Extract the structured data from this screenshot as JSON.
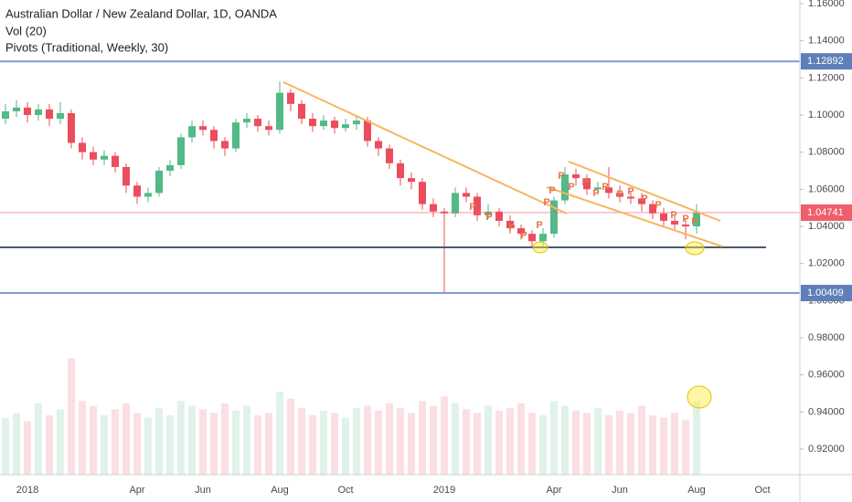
{
  "chart_data": {
    "type": "candlestick",
    "title": "Australian Dollar / New Zealand Dollar, 1D, OANDA",
    "indicators": [
      "Vol (20)",
      "Pivots (Traditional, Weekly, 30)"
    ],
    "categories": [
      null,
      null,
      "2018",
      null,
      null,
      null,
      null,
      null,
      null,
      null,
      null,
      null,
      "Apr",
      null,
      null,
      null,
      null,
      null,
      "Jun",
      null,
      null,
      null,
      null,
      null,
      null,
      "Aug",
      null,
      null,
      null,
      null,
      null,
      "Oct",
      null,
      null,
      null,
      null,
      null,
      null,
      null,
      null,
      "2019",
      null,
      null,
      null,
      null,
      null,
      null,
      null,
      null,
      null,
      "Apr",
      null,
      null,
      null,
      null,
      null,
      "Jun",
      null,
      null,
      null,
      null,
      null,
      null,
      "Aug",
      null,
      null,
      null,
      null,
      null,
      "Oct"
    ],
    "open": [
      1.098,
      1.102,
      1.104,
      1.1,
      1.103,
      1.098,
      1.101,
      1.085,
      1.08,
      1.076,
      1.078,
      1.072,
      1.062,
      1.056,
      1.058,
      1.07,
      1.073,
      1.088,
      1.094,
      1.092,
      1.086,
      1.082,
      1.096,
      1.098,
      1.094,
      1.092,
      1.112,
      1.106,
      1.098,
      1.094,
      1.097,
      1.093,
      1.095,
      1.097,
      1.086,
      1.082,
      1.074,
      1.066,
      1.064,
      1.052,
      1.048,
      1.047,
      1.058,
      1.056,
      1.046,
      1.048,
      1.043,
      1.039,
      1.036,
      1.032,
      1.036,
      1.054,
      1.068,
      1.066,
      1.06,
      1.061,
      1.058,
      1.056,
      1.055,
      1.052,
      1.047,
      1.043,
      1.041,
      1.04,
      null,
      null,
      null,
      null,
      null,
      null
    ],
    "high": [
      1.106,
      1.108,
      1.107,
      1.106,
      1.106,
      1.107,
      1.103,
      1.088,
      1.083,
      1.081,
      1.08,
      1.074,
      1.064,
      1.061,
      1.072,
      1.076,
      1.09,
      1.097,
      1.097,
      1.094,
      1.088,
      1.098,
      1.101,
      1.1,
      1.097,
      1.118,
      1.114,
      1.108,
      1.101,
      1.1,
      1.099,
      1.098,
      1.1,
      1.099,
      1.088,
      1.084,
      1.076,
      1.069,
      1.066,
      1.055,
      1.05,
      1.061,
      1.061,
      1.058,
      1.052,
      1.05,
      1.046,
      1.041,
      1.038,
      1.039,
      1.056,
      1.072,
      1.071,
      1.068,
      1.064,
      1.072,
      1.062,
      1.059,
      1.058,
      1.054,
      1.05,
      1.046,
      1.044,
      1.052,
      null,
      null,
      null,
      null,
      null,
      null
    ],
    "low": [
      1.095,
      1.099,
      1.096,
      1.097,
      1.094,
      1.095,
      1.082,
      1.076,
      1.073,
      1.073,
      1.069,
      1.058,
      1.052,
      1.053,
      1.056,
      1.067,
      1.071,
      1.085,
      1.089,
      1.082,
      1.078,
      1.08,
      1.093,
      1.091,
      1.089,
      1.09,
      1.102,
      1.095,
      1.091,
      1.092,
      1.09,
      1.091,
      1.092,
      1.083,
      1.078,
      1.071,
      1.062,
      1.06,
      1.049,
      1.045,
      1.0045,
      1.045,
      1.053,
      1.043,
      1.044,
      1.04,
      1.036,
      1.033,
      1.029,
      1.0285,
      1.034,
      1.052,
      1.062,
      1.057,
      1.057,
      1.055,
      1.053,
      1.052,
      1.048,
      1.044,
      1.04,
      1.038,
      1.033,
      1.036,
      null,
      null,
      null,
      null,
      null,
      null
    ],
    "close": [
      1.102,
      1.104,
      1.1,
      1.103,
      1.098,
      1.101,
      1.085,
      1.08,
      1.076,
      1.078,
      1.072,
      1.062,
      1.056,
      1.058,
      1.07,
      1.073,
      1.088,
      1.094,
      1.092,
      1.086,
      1.082,
      1.096,
      1.098,
      1.094,
      1.092,
      1.112,
      1.106,
      1.098,
      1.094,
      1.097,
      1.093,
      1.095,
      1.097,
      1.086,
      1.082,
      1.074,
      1.066,
      1.064,
      1.052,
      1.048,
      1.047,
      1.058,
      1.056,
      1.046,
      1.048,
      1.043,
      1.039,
      1.036,
      1.032,
      1.036,
      1.054,
      1.068,
      1.066,
      1.06,
      1.061,
      1.058,
      1.056,
      1.055,
      1.052,
      1.047,
      1.043,
      1.041,
      1.04,
      1.0474,
      null,
      null,
      null,
      null,
      null,
      null
    ],
    "volume": [
      48,
      52,
      45,
      60,
      50,
      55,
      98,
      62,
      58,
      50,
      55,
      60,
      52,
      48,
      56,
      50,
      62,
      58,
      55,
      52,
      60,
      54,
      58,
      50,
      52,
      70,
      64,
      56,
      50,
      54,
      52,
      48,
      56,
      58,
      54,
      60,
      56,
      52,
      62,
      58,
      66,
      60,
      55,
      52,
      58,
      54,
      56,
      60,
      52,
      50,
      62,
      58,
      54,
      52,
      56,
      50,
      54,
      52,
      58,
      50,
      48,
      52,
      46,
      62,
      null,
      null,
      null,
      null,
      null,
      null
    ],
    "volume_lim": [
      0,
      100
    ],
    "up_color": "#53b987",
    "down_color": "#eb4d5c",
    "ylim": [
      0.90625,
      1.16197
    ],
    "yticks": [
      {
        "value": 0.92,
        "label": "0.92000"
      },
      {
        "value": 0.94,
        "label": "0.94000"
      },
      {
        "value": 0.96,
        "label": "0.96000"
      },
      {
        "value": 0.98,
        "label": "0.98000"
      },
      {
        "value": 1.0,
        "label": "1.00000"
      },
      {
        "value": 1.02,
        "label": "1.02000"
      },
      {
        "value": 1.04,
        "label": "1.04000"
      },
      {
        "value": 1.06,
        "label": "1.06000"
      },
      {
        "value": 1.08,
        "label": "1.08000"
      },
      {
        "value": 1.1,
        "label": "1.10000"
      },
      {
        "value": 1.12,
        "label": "1.12000"
      },
      {
        "value": 1.14,
        "label": "1.14000"
      },
      {
        "value": 1.16,
        "label": "1.16000"
      }
    ],
    "levels": [
      {
        "value": 1.12892,
        "color": "#7f9ccf"
      },
      {
        "value": 1.00409,
        "color": "#7f9ccf"
      }
    ],
    "last_price": {
      "value": 1.04741,
      "color": "#f05e6a"
    },
    "pivot_label": "P"
  }
}
